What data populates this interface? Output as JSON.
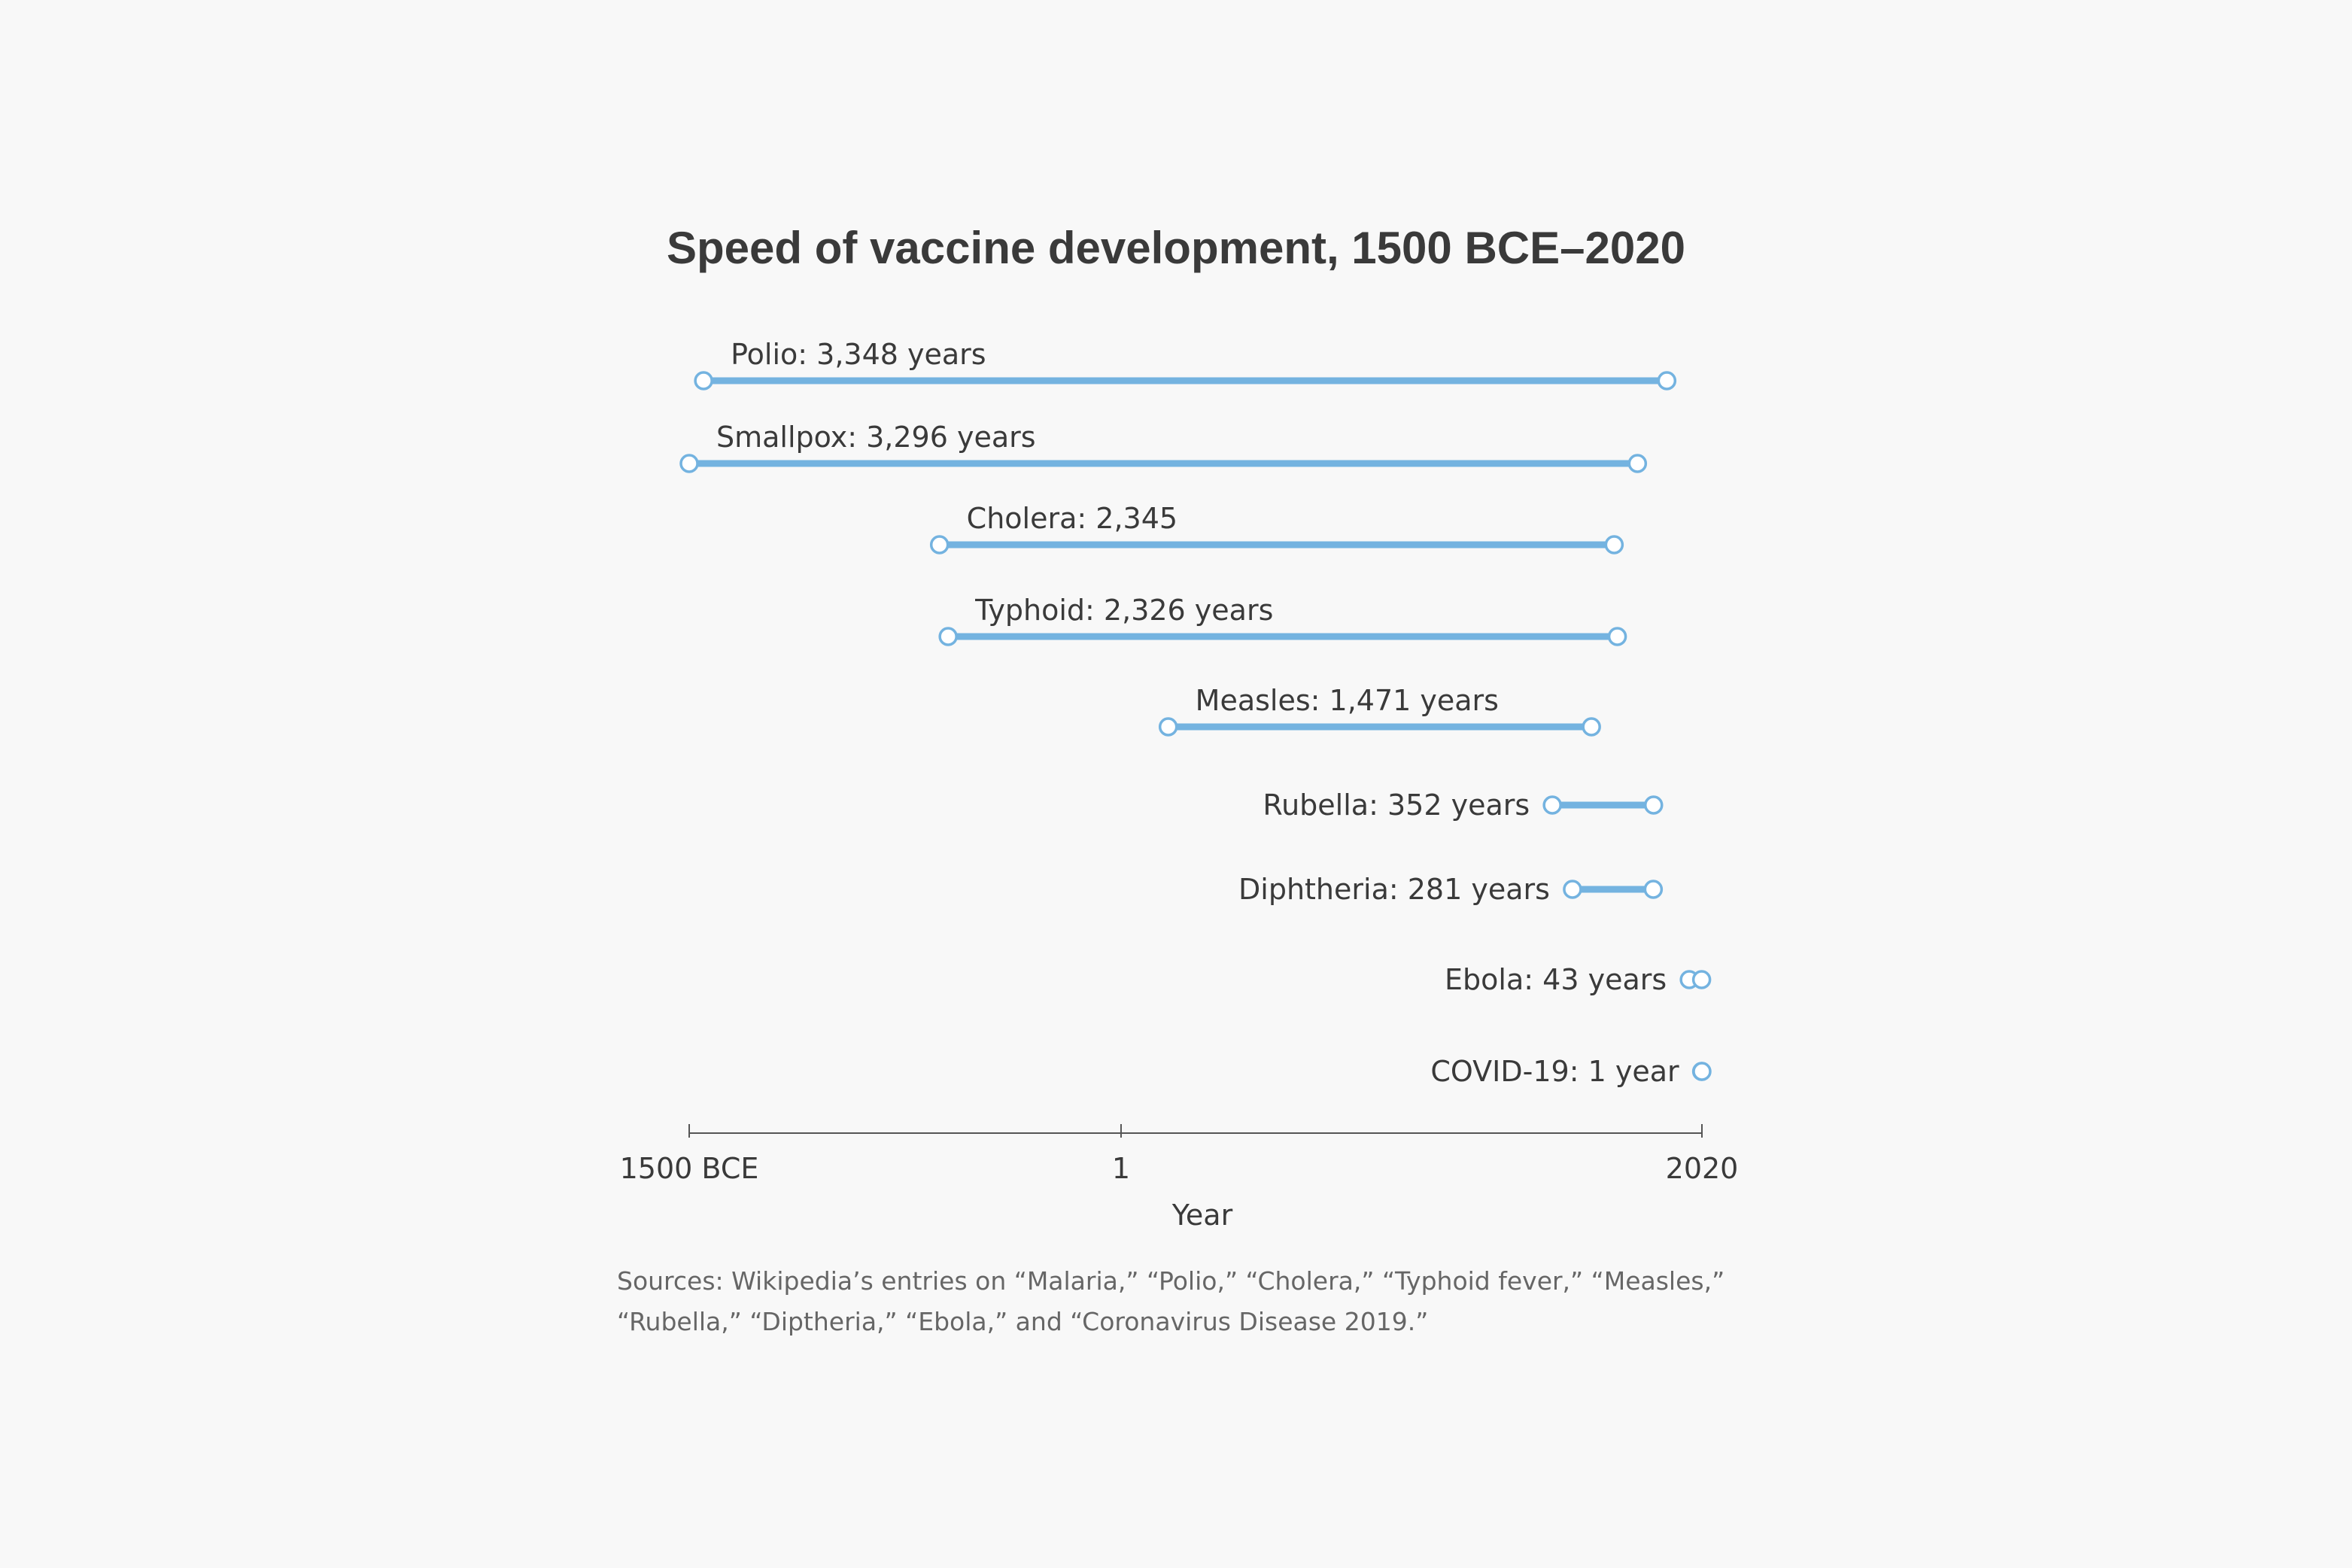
{
  "chart_data": {
    "type": "dumbbell",
    "title": "Speed of vaccine development, 1500 BCE–2020",
    "xlabel": "Year",
    "xlim": [
      -1500,
      2020
    ],
    "x_ticks": [
      {
        "value": -1500,
        "label": "1500 BCE"
      },
      {
        "value": 1,
        "label": "1"
      },
      {
        "value": 2020,
        "label": "2020"
      }
    ],
    "series_color": "#74b3e0",
    "axis_color": "#555555",
    "rows": [
      {
        "label": "Polio: 3,348 years",
        "start": -1450,
        "end": 1898,
        "label_pos": "above"
      },
      {
        "label": "Smallpox: 3,296 years",
        "start": -1500,
        "end": 1796,
        "label_pos": "above"
      },
      {
        "label": "Cholera: 2,345",
        "start": -630,
        "end": 1715,
        "label_pos": "above"
      },
      {
        "label": "Typhoid: 2,326 years",
        "start": -600,
        "end": 1726,
        "label_pos": "above"
      },
      {
        "label": "Measles: 1,471 years",
        "start": 165,
        "end": 1636,
        "label_pos": "above"
      },
      {
        "label": "Rubella: 352 years",
        "start": 1500,
        "end": 1852,
        "label_pos": "left"
      },
      {
        "label": "Diphtheria: 281 years",
        "start": 1570,
        "end": 1851,
        "label_pos": "left"
      },
      {
        "label": "Ebola: 43 years",
        "start": 1976,
        "end": 2019,
        "label_pos": "left"
      },
      {
        "label": "COVID-19: 1 year",
        "start": 2019,
        "end": 2020,
        "label_pos": "left"
      }
    ]
  },
  "sources": {
    "line1": "Sources: Wikipedia’s entries on “Malaria,” “Polio,” “Cholera,” “Typhoid fever,” “Measles,”",
    "line2": "“Rubella,” “Diptheria,” “Ebola,” and “Coronavirus Disease 2019.”"
  }
}
